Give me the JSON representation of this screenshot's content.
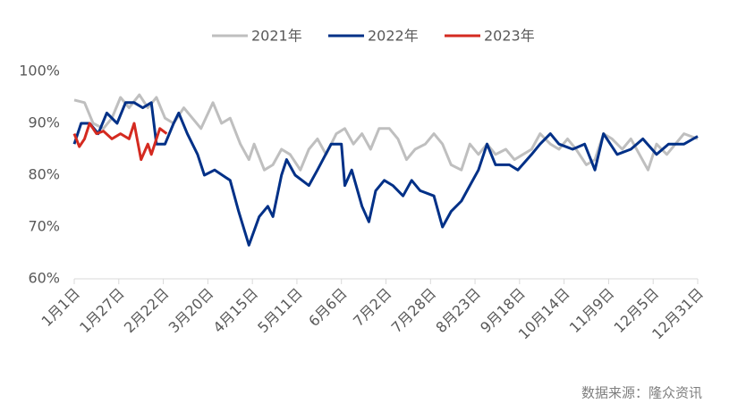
{
  "chart_data": {
    "type": "line",
    "xlim": [
      0,
      364
    ],
    "xticks": [
      {
        "value": 0,
        "label": "1月1日"
      },
      {
        "value": 26,
        "label": "1月27日"
      },
      {
        "value": 52,
        "label": "2月22日"
      },
      {
        "value": 78,
        "label": "3月20日"
      },
      {
        "value": 104,
        "label": "4月15日"
      },
      {
        "value": 130,
        "label": "5月11日"
      },
      {
        "value": 156,
        "label": "6月6日"
      },
      {
        "value": 182,
        "label": "7月2日"
      },
      {
        "value": 208,
        "label": "7月28日"
      },
      {
        "value": 234,
        "label": "8月23日"
      },
      {
        "value": 260,
        "label": "9月18日"
      },
      {
        "value": 286,
        "label": "10月14日"
      },
      {
        "value": 312,
        "label": "11月9日"
      },
      {
        "value": 338,
        "label": "12月5日"
      },
      {
        "value": 364,
        "label": "12月31日"
      }
    ],
    "ylim": [
      60,
      100
    ],
    "yticks": [
      {
        "value": 60,
        "label": "60%"
      },
      {
        "value": 70,
        "label": "70%"
      },
      {
        "value": 80,
        "label": "80%"
      },
      {
        "value": 90,
        "label": "90%"
      },
      {
        "value": 100,
        "label": "100%"
      }
    ],
    "series": [
      {
        "name": "2021年",
        "color": "#bfbfbf",
        "x": [
          0,
          6,
          11,
          17,
          22,
          27,
          32,
          38,
          43,
          48,
          53,
          58,
          64,
          69,
          74,
          81,
          86,
          91,
          97,
          102,
          105,
          111,
          116,
          121,
          126,
          132,
          137,
          142,
          147,
          153,
          158,
          163,
          168,
          173,
          178,
          184,
          189,
          194,
          199,
          205,
          210,
          215,
          220,
          226,
          231,
          236,
          241,
          246,
          252,
          257,
          262,
          267,
          272,
          278,
          283,
          288,
          293,
          299,
          304,
          309,
          314,
          320,
          325,
          330,
          335,
          340,
          346,
          351,
          356,
          364
        ],
        "values": [
          94.5,
          94,
          90,
          89,
          91,
          95,
          93,
          95.5,
          93,
          95,
          91,
          90,
          93,
          91,
          89,
          94,
          90,
          91,
          86,
          83,
          86,
          81,
          82,
          85,
          84,
          81,
          85,
          87,
          84,
          88,
          89,
          86,
          88,
          85,
          89,
          89,
          87,
          83,
          85,
          86,
          88,
          86,
          82,
          81,
          86,
          84,
          86,
          84,
          85,
          83,
          84,
          85,
          88,
          86,
          85,
          87,
          85,
          82,
          83,
          88,
          87,
          85,
          87,
          84,
          81,
          86,
          84,
          86,
          88,
          87
        ]
      },
      {
        "name": "2022年",
        "color": "#003087",
        "x": [
          0,
          4,
          9,
          14,
          19,
          25,
          30,
          35,
          40,
          45,
          48,
          53,
          58,
          61,
          66,
          72,
          76,
          82,
          91,
          96,
          102,
          108,
          113,
          116,
          121,
          124,
          129,
          137,
          142,
          150,
          156,
          158,
          162,
          168,
          172,
          176,
          181,
          186,
          192,
          197,
          202,
          210,
          215,
          220,
          226,
          231,
          236,
          241,
          246,
          254,
          259,
          267,
          272,
          278,
          283,
          291,
          298,
          304,
          309,
          317,
          325,
          332,
          340,
          347,
          356,
          364
        ],
        "values": [
          86,
          90,
          90,
          88,
          92,
          90,
          94,
          94,
          93,
          94,
          86,
          86,
          90,
          92,
          88,
          84,
          80,
          81,
          79,
          73,
          66.5,
          72,
          74,
          72,
          80,
          83,
          80,
          78,
          81,
          86,
          86,
          78,
          81,
          74,
          71,
          77,
          79,
          78,
          76,
          79,
          77,
          76,
          70,
          73,
          75,
          78,
          81,
          86,
          82,
          82,
          81,
          84,
          86,
          88,
          86,
          85,
          86,
          81,
          88,
          84,
          85,
          87,
          84,
          86,
          86,
          87.5
        ]
      },
      {
        "name": "2023年",
        "color": "#d42a20",
        "x": [
          0,
          3,
          6,
          9,
          13,
          17,
          22,
          27,
          32,
          35,
          39,
          43,
          45,
          50,
          54
        ],
        "values": [
          88,
          85.5,
          87,
          90,
          88,
          88.5,
          87,
          88,
          87,
          90,
          83,
          86,
          84,
          89,
          88
        ]
      }
    ],
    "source": "数据来源：隆众资讯"
  }
}
